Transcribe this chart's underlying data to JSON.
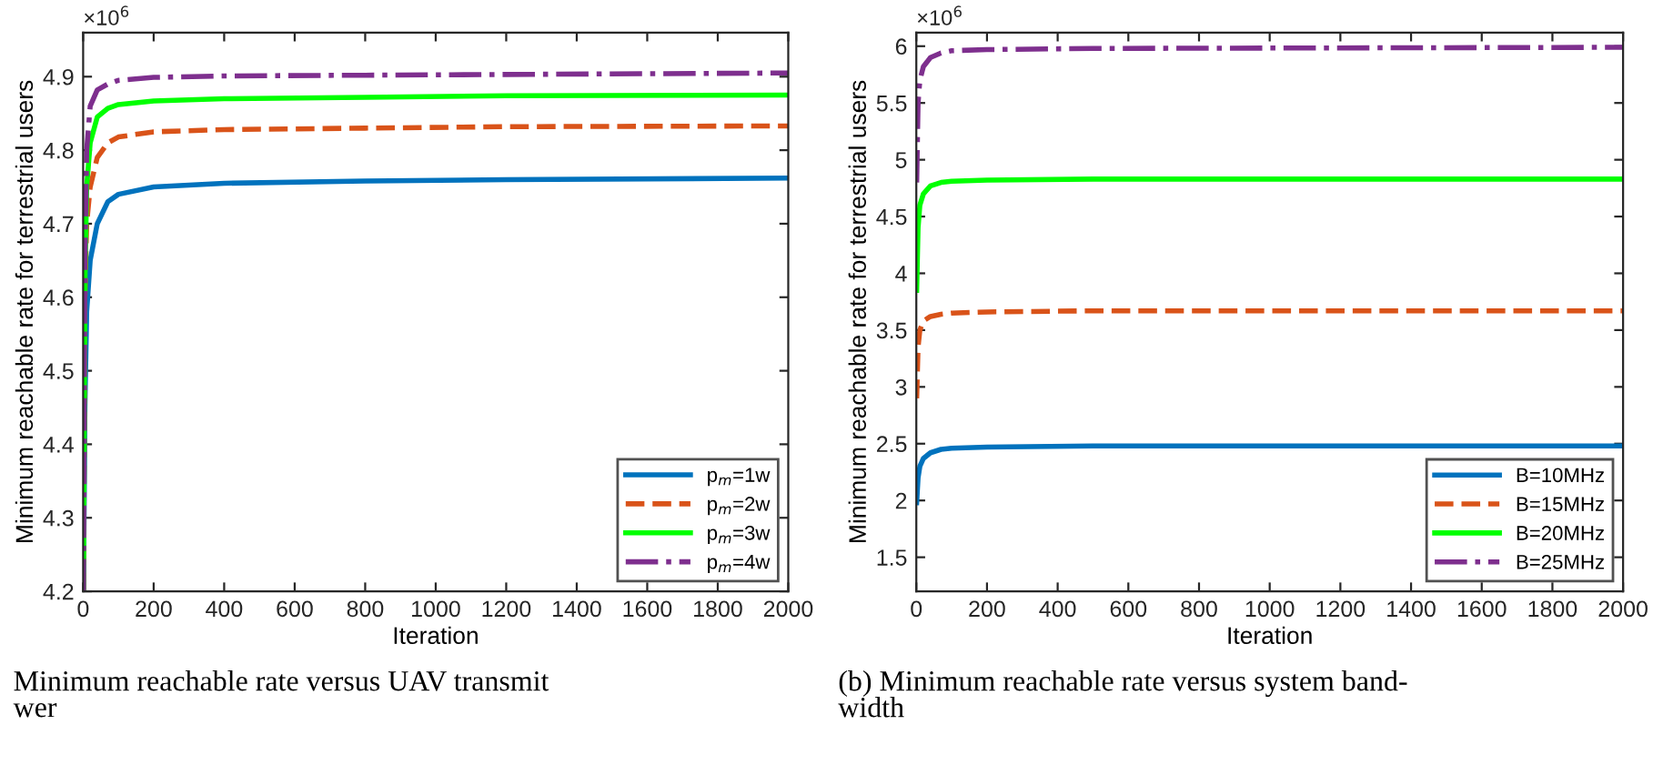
{
  "chart_data": [
    {
      "type": "line",
      "xlabel": "Iteration",
      "ylabel": "Minimum reachable rate for terrestrial users",
      "annotations": [
        "×10$^{6}$",
        "Minimum reachable rate versus UAV transmit\nwer"
      ],
      "xlim": [
        0,
        2000
      ],
      "xticks": [
        0,
        200,
        400,
        600,
        800,
        1000,
        1200,
        1400,
        1600,
        1800,
        2000
      ],
      "ylim": [
        4.2,
        4.96
      ],
      "yticks": [
        4.2,
        4.3,
        4.4,
        4.5,
        4.6,
        4.7,
        4.8,
        4.9
      ],
      "grid": false,
      "legend": "bottom right",
      "x": [
        1,
        5,
        10,
        20,
        40,
        70,
        100,
        200,
        400,
        800,
        1200,
        2000
      ],
      "series": [
        {
          "name": "p$_{m}$=1w",
          "color": "#0072bd",
          "line_style": "solid",
          "values": [
            4.2,
            4.45,
            4.58,
            4.65,
            4.7,
            4.73,
            4.74,
            4.75,
            4.755,
            4.758,
            4.76,
            4.762
          ]
        },
        {
          "name": "p$_{m}$=2w",
          "color": "#d95319",
          "line_style": "dashed",
          "values": [
            4.2,
            4.6,
            4.7,
            4.75,
            4.79,
            4.81,
            4.818,
            4.825,
            4.828,
            4.83,
            4.832,
            4.833
          ]
        },
        {
          "name": "p$_{m}$=3w",
          "color": "#00ff00",
          "line_style": "solid",
          "values": [
            4.2,
            4.62,
            4.75,
            4.81,
            4.845,
            4.857,
            4.862,
            4.867,
            4.87,
            4.872,
            4.874,
            4.875
          ]
        },
        {
          "name": "p$_{m}$=4w",
          "color": "#7e2f8e",
          "line_style": "dashdot",
          "values": [
            4.2,
            4.65,
            4.8,
            4.86,
            4.882,
            4.89,
            4.895,
            4.899,
            4.901,
            4.902,
            4.903,
            4.905
          ]
        }
      ]
    },
    {
      "type": "line",
      "xlabel": "Iteration",
      "ylabel": "Minimum reachable rate for terrestrial users",
      "annotations": [
        "×10$^{6}$",
        "(b) Minimum reachable rate versus system band-\nwidth"
      ],
      "xlim": [
        0,
        2000
      ],
      "xticks": [
        0,
        200,
        400,
        600,
        800,
        1000,
        1200,
        1400,
        1600,
        1800,
        2000
      ],
      "ylim": [
        1.2,
        6.12
      ],
      "yticks": [
        1.5,
        2,
        2.5,
        3,
        3.5,
        4,
        4.5,
        5,
        5.5,
        6
      ],
      "grid": false,
      "legend": "bottom right",
      "x": [
        1,
        5,
        10,
        20,
        40,
        70,
        100,
        200,
        500,
        2000
      ],
      "series": [
        {
          "name": "B=10MHz",
          "color": "#0072bd",
          "line_style": "solid",
          "values": [
            1.98,
            2.2,
            2.3,
            2.37,
            2.42,
            2.45,
            2.46,
            2.47,
            2.48,
            2.48
          ]
        },
        {
          "name": "B=15MHz",
          "color": "#d95319",
          "line_style": "dashed",
          "values": [
            2.9,
            3.35,
            3.5,
            3.58,
            3.62,
            3.64,
            3.65,
            3.66,
            3.67,
            3.67
          ]
        },
        {
          "name": "B=20MHz",
          "color": "#00ff00",
          "line_style": "solid",
          "values": [
            3.85,
            4.4,
            4.6,
            4.7,
            4.77,
            4.8,
            4.81,
            4.82,
            4.83,
            4.83
          ]
        },
        {
          "name": "B=25MHz",
          "color": "#7e2f8e",
          "line_style": "dashdot",
          "values": [
            4.8,
            5.5,
            5.7,
            5.82,
            5.9,
            5.94,
            5.96,
            5.97,
            5.98,
            5.99
          ]
        }
      ]
    }
  ]
}
